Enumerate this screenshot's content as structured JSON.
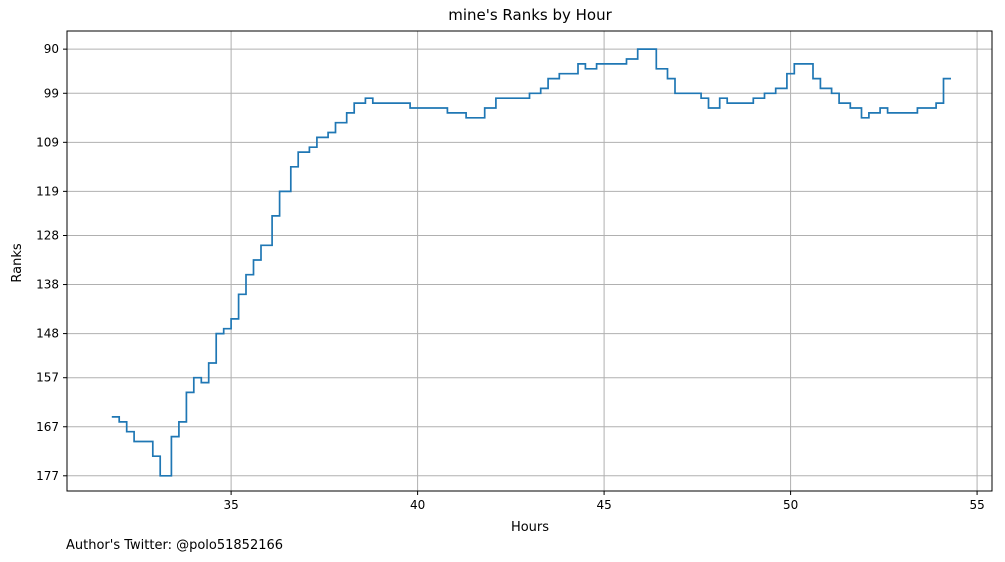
{
  "chart_data": {
    "type": "line",
    "step": true,
    "title": "mine's Ranks by Hour",
    "xlabel": "Hours",
    "ylabel": "Ranks",
    "y_inverted": true,
    "xlim": [
      30.6,
      55.4
    ],
    "ylim": [
      180.1,
      86.3
    ],
    "grid": true,
    "color": "#1f77b4",
    "x_ticks": [
      35,
      40,
      45,
      50,
      55
    ],
    "x_tick_labels": [
      "35",
      "40",
      "45",
      "50",
      "55"
    ],
    "y_ticks": [
      90,
      99,
      109,
      119,
      128,
      138,
      148,
      157,
      167,
      177
    ],
    "y_tick_labels": [
      "90",
      "99",
      "109",
      "119",
      "128",
      "138",
      "148",
      "157",
      "167",
      "177"
    ],
    "series": [
      {
        "x": [
          31.8,
          32.0,
          32.2,
          32.4,
          32.9,
          33.1,
          33.4,
          33.6,
          33.8,
          34.0,
          34.2,
          34.4,
          34.6,
          34.8,
          35.0,
          35.2,
          35.4,
          35.6,
          35.8,
          36.1,
          36.3,
          36.6,
          36.8,
          37.1,
          37.3,
          37.6,
          37.8,
          38.1,
          38.3,
          38.6,
          38.8,
          39.3,
          39.8,
          40.3,
          40.8,
          41.3,
          41.8,
          42.1,
          42.3,
          42.5,
          43.0,
          43.3,
          43.5,
          43.8,
          44.0,
          44.3,
          44.5,
          44.8,
          45.0,
          45.3,
          45.6,
          45.9,
          46.1,
          46.4,
          46.7,
          46.9,
          47.1,
          47.6,
          47.8,
          48.1,
          48.3,
          48.6,
          49.0,
          49.3,
          49.6,
          49.9,
          50.1,
          50.3,
          50.6,
          50.8,
          51.1,
          51.3,
          51.6,
          51.9,
          52.1,
          52.4,
          52.6,
          53.2,
          53.4,
          53.6,
          53.9,
          54.1,
          54.3
        ],
        "y": [
          165,
          166,
          168,
          170,
          173,
          177,
          169,
          166,
          160,
          157,
          158,
          154,
          148,
          147,
          145,
          140,
          136,
          133,
          130,
          124,
          119,
          114,
          111,
          110,
          108,
          107,
          105,
          103,
          101,
          100,
          101,
          101,
          102,
          102,
          103,
          104,
          102,
          100,
          100,
          100,
          99,
          98,
          96,
          95,
          95,
          93,
          94,
          93,
          93,
          93,
          92,
          90,
          90,
          94,
          96,
          99,
          99,
          100,
          102,
          100,
          101,
          101,
          100,
          99,
          98,
          95,
          93,
          93,
          96,
          98,
          99,
          101,
          102,
          104,
          103,
          102,
          103,
          103,
          102,
          102,
          101,
          96,
          96
        ]
      }
    ],
    "annotation": "Author's Twitter: @polo51852166"
  }
}
